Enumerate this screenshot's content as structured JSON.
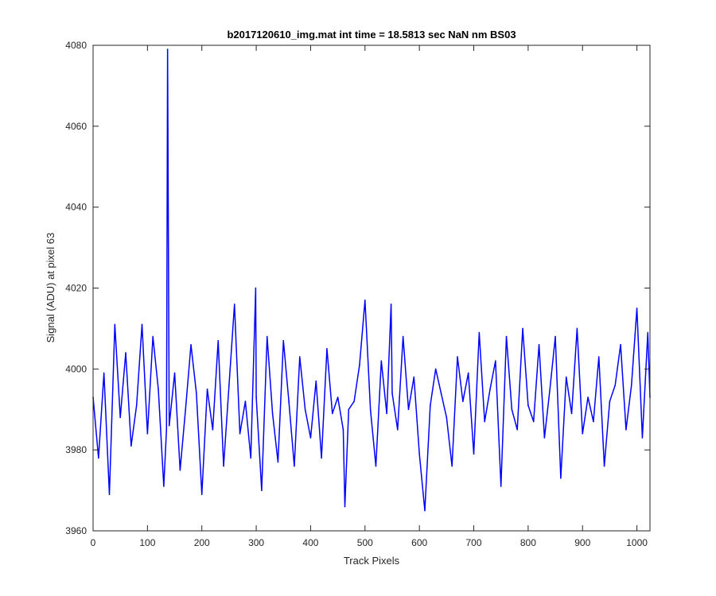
{
  "chart_data": {
    "type": "line",
    "title": "b2017120610_img.mat int time = 18.5813 sec  NaN nm BS03",
    "xlabel": "Track Pixels",
    "ylabel": "Signal (ADU) at pixel 63",
    "xlim": [
      0,
      1024
    ],
    "ylim": [
      3960,
      4080
    ],
    "xticks": [
      "0",
      "100",
      "200",
      "300",
      "400",
      "500",
      "600",
      "700",
      "800",
      "900",
      "1000"
    ],
    "yticks": [
      "3960",
      "3980",
      "4000",
      "4020",
      "4040",
      "4060",
      "4080"
    ],
    "grid": false,
    "legend": "none",
    "series": [
      {
        "color": "#0000ff",
        "x": [
          0,
          10,
          20,
          30,
          40,
          50,
          60,
          70,
          80,
          90,
          100,
          110,
          120,
          130,
          135,
          137,
          140,
          150,
          160,
          170,
          180,
          190,
          200,
          210,
          220,
          230,
          240,
          250,
          260,
          270,
          280,
          290,
          299,
          300,
          310,
          320,
          330,
          340,
          350,
          360,
          370,
          380,
          390,
          400,
          410,
          420,
          430,
          440,
          450,
          460,
          463,
          470,
          480,
          490,
          500,
          510,
          520,
          530,
          540,
          548,
          550,
          560,
          570,
          580,
          590,
          600,
          610,
          620,
          630,
          640,
          650,
          660,
          670,
          680,
          690,
          700,
          710,
          720,
          730,
          740,
          750,
          760,
          770,
          780,
          790,
          800,
          810,
          820,
          830,
          840,
          850,
          860,
          870,
          880,
          890,
          900,
          910,
          920,
          930,
          940,
          950,
          960,
          970,
          980,
          990,
          1000,
          1010,
          1020,
          1024
        ],
        "y": [
          3993,
          3978,
          3999,
          3969,
          4011,
          3988,
          4004,
          3981,
          3991,
          4011,
          3984,
          4008,
          3995,
          3971,
          3985,
          4079,
          3986,
          3999,
          3975,
          3990,
          4006,
          3994,
          3969,
          3995,
          3985,
          4007,
          3976,
          3996,
          4016,
          3984,
          3992,
          3978,
          4020,
          3993,
          3970,
          4008,
          3989,
          3977,
          4007,
          3992,
          3976,
          4003,
          3990,
          3983,
          3997,
          3978,
          4005,
          3989,
          3993,
          3985,
          3966,
          3990,
          3992,
          4001,
          4017,
          3990,
          3976,
          4002,
          3989,
          4016,
          3994,
          3985,
          4008,
          3990,
          3998,
          3979,
          3965,
          3991,
          4000,
          3994,
          3988,
          3976,
          4003,
          3992,
          3999,
          3979,
          4009,
          3987,
          3995,
          4002,
          3971,
          4008,
          3990,
          3985,
          4010,
          3991,
          3987,
          4006,
          3983,
          3995,
          4008,
          3973,
          3998,
          3989,
          4010,
          3984,
          3993,
          3987,
          4003,
          3976,
          3992,
          3996,
          4006,
          3985,
          3996,
          4015,
          3983,
          4009,
          3993
        ]
      }
    ]
  }
}
